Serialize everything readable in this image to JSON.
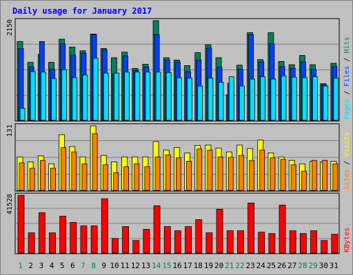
{
  "title": "Daily usage for January 2017",
  "days": [
    "1",
    "2",
    "3",
    "4",
    "5",
    "6",
    "7",
    "8",
    "9",
    "10",
    "11",
    "12",
    "13",
    "14",
    "15",
    "16",
    "17",
    "18",
    "19",
    "20",
    "21",
    "22",
    "23",
    "24",
    "25",
    "26",
    "27",
    "28",
    "29",
    "30",
    "31"
  ],
  "weekend_days": [
    "1",
    "7",
    "8",
    "14",
    "15",
    "21",
    "22",
    "28",
    "29"
  ],
  "colors": {
    "background": "#c0c0c0",
    "panel": "#c0c0c0",
    "hits": "#00805c",
    "files": "#0040ff",
    "pages": "#00e0ff",
    "visits": "#ffff00",
    "sites": "#ff8000",
    "kbytes": "#ff0000",
    "title": "#0000ff",
    "weekend_label": "#00805c"
  },
  "chart_data": [
    {
      "type": "bar",
      "name": "pages-files-hits",
      "ymax_label": "2150",
      "ylim": [
        0,
        2150
      ],
      "right_label": {
        "pages": "Pages",
        "files": "Files",
        "hits": "Hits",
        "sep": " / "
      },
      "series": [
        {
          "key": "hits",
          "values": [
            1700,
            1250,
            1420,
            1250,
            1750,
            1580,
            1500,
            1860,
            1550,
            1350,
            1470,
            1120,
            1210,
            2150,
            1350,
            1300,
            1180,
            1460,
            1630,
            1350,
            550,
            1190,
            1890,
            1310,
            1890,
            1270,
            1200,
            1400,
            1200,
            790,
            1230
          ]
        },
        {
          "key": "files",
          "values": [
            1550,
            1150,
            1700,
            1100,
            1650,
            1400,
            1450,
            1850,
            1520,
            1000,
            1390,
            1080,
            1150,
            1850,
            1300,
            1250,
            1050,
            1300,
            1560,
            1150,
            800,
            1100,
            1850,
            1260,
            1650,
            1160,
            1120,
            1260,
            1100,
            770,
            1160
          ]
        },
        {
          "key": "pages",
          "values": [
            260,
            1050,
            1040,
            900,
            1090,
            920,
            980,
            1340,
            1020,
            1020,
            1040,
            1040,
            1040,
            1040,
            1030,
            920,
            910,
            740,
            910,
            820,
            940,
            740,
            890,
            940,
            890,
            960,
            930,
            920,
            940,
            740,
            910
          ]
        }
      ]
    },
    {
      "type": "bar",
      "name": "visits-sites",
      "ymax_label": "131",
      "ylim": [
        0,
        131
      ],
      "right_label": {
        "sites": "Sites",
        "visits": "Visits",
        "sep": " / "
      },
      "series": [
        {
          "key": "visits",
          "values": [
            68,
            58,
            70,
            54,
            113,
            89,
            68,
            131,
            71,
            58,
            68,
            68,
            68,
            99,
            82,
            87,
            76,
            91,
            92,
            86,
            78,
            92,
            85,
            102,
            76,
            68,
            61,
            54,
            59,
            58,
            59
          ]
        },
        {
          "key": "sites",
          "values": [
            56,
            45,
            61,
            45,
            87,
            78,
            54,
            115,
            52,
            36,
            48,
            54,
            48,
            68,
            72,
            66,
            59,
            84,
            82,
            68,
            67,
            71,
            61,
            82,
            66,
            63,
            52,
            39,
            61,
            61,
            54
          ]
        }
      ]
    },
    {
      "type": "bar",
      "name": "kbytes",
      "ymax_label": "41528",
      "ylim": [
        0,
        41528
      ],
      "right_label": {
        "kbytes": "KBytes"
      },
      "series": [
        {
          "key": "kbytes",
          "values": [
            41528,
            14500,
            29000,
            14500,
            26500,
            22000,
            19500,
            19500,
            39000,
            10500,
            19000,
            9000,
            17000,
            34000,
            19000,
            16000,
            19000,
            24000,
            14500,
            31500,
            16000,
            16000,
            36000,
            15000,
            14000,
            34500,
            16000,
            14000,
            16000,
            9000,
            13500
          ]
        }
      ]
    }
  ]
}
